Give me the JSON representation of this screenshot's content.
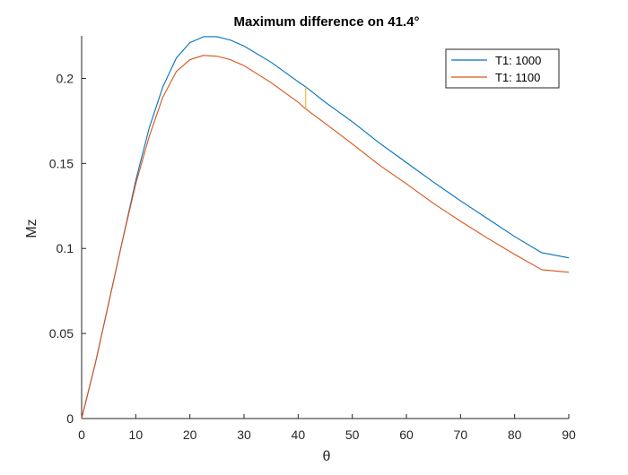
{
  "chart_data": {
    "type": "line",
    "title": "Maximum difference on 41.4°",
    "xlabel": "θ",
    "ylabel": "Mz",
    "xlim": [
      0,
      90
    ],
    "ylim": [
      0,
      0.225
    ],
    "xticks": [
      0,
      10,
      20,
      30,
      40,
      50,
      60,
      70,
      80,
      90
    ],
    "xtick_labels": [
      "0",
      "10",
      "20",
      "30",
      "40",
      "50",
      "60",
      "70",
      "80",
      "90"
    ],
    "yticks": [
      0,
      0.05,
      0.1,
      0.15,
      0.2
    ],
    "ytick_labels": [
      "0",
      "0.05",
      "0.1",
      "0.15",
      "0.2"
    ],
    "grid": false,
    "legend_position": "top-right",
    "series": [
      {
        "name": "T1: 1000",
        "color": "#0072BD",
        "x": [
          0,
          2.5,
          5,
          7.5,
          10,
          12.5,
          15,
          17.5,
          20,
          22.5,
          25,
          27.5,
          30,
          35,
          40,
          41.4,
          45,
          50,
          55,
          60,
          65,
          70,
          75,
          80,
          85,
          90
        ],
        "y": [
          0,
          0.032,
          0.068,
          0.104,
          0.14,
          0.171,
          0.195,
          0.212,
          0.221,
          0.2245,
          0.2245,
          0.2225,
          0.219,
          0.2095,
          0.198,
          0.195,
          0.186,
          0.1745,
          0.162,
          0.1505,
          0.139,
          0.128,
          0.1175,
          0.107,
          0.0975,
          0.0945
        ]
      },
      {
        "name": "T1: 1100",
        "color": "#D95319",
        "x": [
          0,
          2.5,
          5,
          7.5,
          10,
          12.5,
          15,
          17.5,
          20,
          22.5,
          25,
          27.5,
          30,
          35,
          40,
          41.4,
          45,
          50,
          55,
          60,
          65,
          70,
          75,
          80,
          85,
          90
        ],
        "y": [
          0,
          0.032,
          0.068,
          0.104,
          0.138,
          0.166,
          0.189,
          0.204,
          0.211,
          0.2135,
          0.213,
          0.211,
          0.2075,
          0.1975,
          0.186,
          0.182,
          0.1735,
          0.1615,
          0.149,
          0.138,
          0.1265,
          0.116,
          0.106,
          0.0965,
          0.0875,
          0.086
        ]
      },
      {
        "name": "",
        "color": "#EDB120",
        "x": [
          41.4,
          41.4
        ],
        "y": [
          0.182,
          0.195
        ]
      }
    ]
  }
}
